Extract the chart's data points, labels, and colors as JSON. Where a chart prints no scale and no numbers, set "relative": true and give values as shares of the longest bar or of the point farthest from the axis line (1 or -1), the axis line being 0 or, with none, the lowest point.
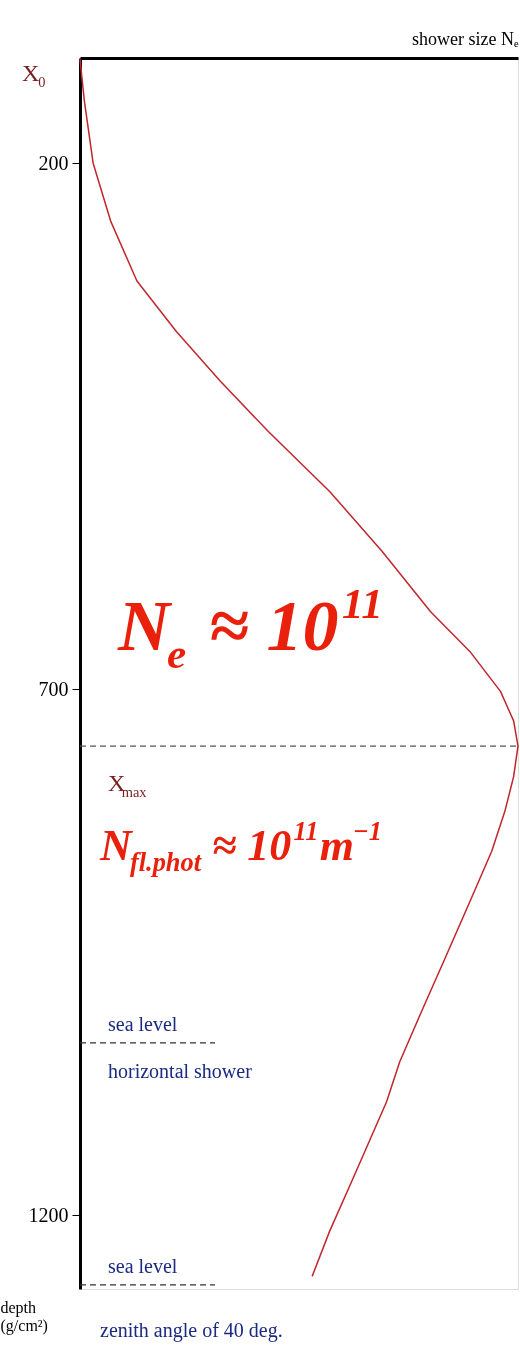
{
  "chart_data": {
    "type": "line",
    "orientation": "horizontal",
    "relative": true,
    "xlabel": "shower size Nₑ",
    "ylabel": "depth (g/cm²)",
    "x": [
      101,
      141,
      200,
      255,
      312,
      360,
      407,
      455,
      512,
      569,
      626,
      664,
      702,
      730,
      754,
      783,
      816,
      854,
      902,
      959,
      1006,
      1054,
      1092,
      1130,
      1168,
      1215,
      1258
    ],
    "series": [
      {
        "color": "#c0262b",
        "values": [
          0,
          0.01,
          0.03,
          0.07,
          0.13,
          0.22,
          0.32,
          0.43,
          0.57,
          0.69,
          0.8,
          0.89,
          0.96,
          0.99,
          1,
          0.99,
          0.97,
          0.94,
          0.89,
          0.83,
          0.78,
          0.73,
          0.7,
          0.66,
          0.62,
          0.57,
          0.53
        ]
      }
    ],
    "ylim": [
      1270,
      100
    ],
    "yticks": [
      200,
      700,
      {
        "value": 1200,
        "label": "1200"
      }
    ],
    "tick_labels": "y",
    "grid": false,
    "legend": false,
    "line_style": "solid",
    "marker": "none",
    "ref_lines": [
      {
        "axis": "y",
        "value": 754,
        "label": "X$_{max}$",
        "color": "#555555",
        "line_style": "dashed"
      },
      {
        "axis": "y",
        "value": 1036,
        "label": "sea level",
        "color": "#333333",
        "line_style": "dashed"
      },
      {
        "axis": "y",
        "value": 1266,
        "label": "sea level",
        "color": "#333333",
        "line_style": "dashed"
      }
    ],
    "annotations": [
      "X$_{0}$",
      "N$_{e}$ ≈ 10$^{11}$",
      "N$_{fl.phot}$ ≈ 10$^{11}$m$^{−1}$",
      "horizontal shower",
      "zenith angle of 40 deg."
    ]
  }
}
